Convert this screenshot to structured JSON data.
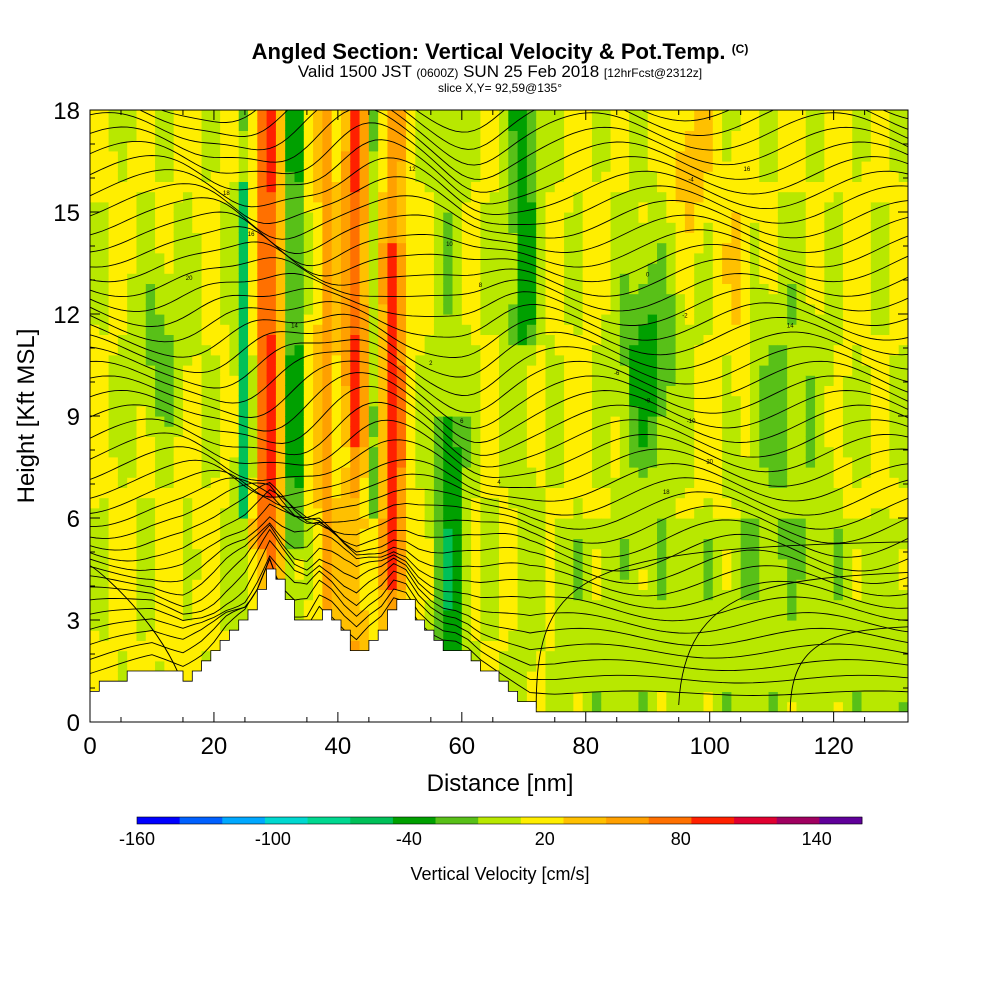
{
  "header": {
    "title": "Angled Section: Vertical Velocity & Pot.Temp.",
    "title_mark": "(C)",
    "valid_prefix": "Valid 1500 JST",
    "valid_utc": "(0600Z)",
    "valid_date": "SUN 25 Feb 2018",
    "forecast": "[12hrFcst@2312z]",
    "slice": "slice X,Y= 92,59@135°"
  },
  "chart_data": {
    "type": "heatmap",
    "title": "Angled Section: Vertical Velocity & Pot.Temp.",
    "xlabel": "Distance [nm]",
    "ylabel": "Height [Kft MSL]",
    "xlim": [
      0,
      132
    ],
    "ylim": [
      0,
      18
    ],
    "x_ticks": [
      0,
      20,
      40,
      60,
      80,
      100,
      120
    ],
    "y_ticks": [
      0,
      3,
      6,
      9,
      12,
      15,
      18
    ],
    "colorbar": {
      "label": "Vertical Velocity [cm/s]",
      "tick_values": [
        -160,
        -100,
        -40,
        20,
        80,
        140
      ],
      "levels": [
        -160,
        -140,
        -120,
        -100,
        -80,
        -60,
        -40,
        -20,
        0,
        20,
        40,
        60,
        80,
        100,
        120,
        140,
        160
      ],
      "colors": [
        "#0000ff",
        "#0060ff",
        "#00a8ff",
        "#00d8d0",
        "#00d890",
        "#00c058",
        "#00a000",
        "#58c018",
        "#b8e800",
        "#ffee00",
        "#ffc000",
        "#ffa000",
        "#ff7000",
        "#ff2000",
        "#e00030",
        "#a00060",
        "#60009a"
      ]
    },
    "terrain_profile": {
      "x": [
        0,
        5,
        10,
        15,
        18,
        20,
        22,
        25,
        27,
        29,
        31,
        33,
        35,
        37,
        39,
        41,
        43,
        45,
        47,
        49,
        51,
        53,
        55,
        57,
        59,
        61,
        63,
        65,
        67,
        69,
        71,
        75,
        80,
        90,
        100,
        110,
        120,
        125,
        132
      ],
      "y": [
        1.0,
        1.3,
        1.6,
        1.3,
        1.7,
        2.1,
        2.6,
        3.1,
        3.9,
        4.8,
        3.8,
        3.0,
        2.8,
        3.4,
        3.0,
        2.4,
        2.0,
        2.5,
        2.9,
        3.6,
        3.5,
        2.8,
        2.4,
        2.2,
        2.2,
        2.0,
        1.6,
        1.3,
        1.0,
        0.7,
        0.4,
        0.3,
        0.3,
        0.3,
        0.3,
        0.3,
        0.3,
        0.3,
        0.3
      ]
    },
    "series": [
      {
        "values": [
          [
            0,
            20
          ],
          [
            22,
            40
          ],
          [
            28,
            80
          ],
          [
            36,
            60
          ],
          [
            44,
            80
          ],
          [
            50,
            60
          ],
          [
            60,
            0
          ],
          [
            70,
            -40
          ],
          [
            90,
            -20
          ],
          [
            100,
            40
          ],
          [
            132,
            0
          ]
        ]
      }
    ],
    "isotherm_labels": [
      "20",
      "18",
      "16",
      "14",
      "12",
      "10",
      "8",
      "6",
      "4",
      "2",
      "0",
      "-2",
      "-4",
      "-6",
      "-8",
      "-10"
    ]
  }
}
